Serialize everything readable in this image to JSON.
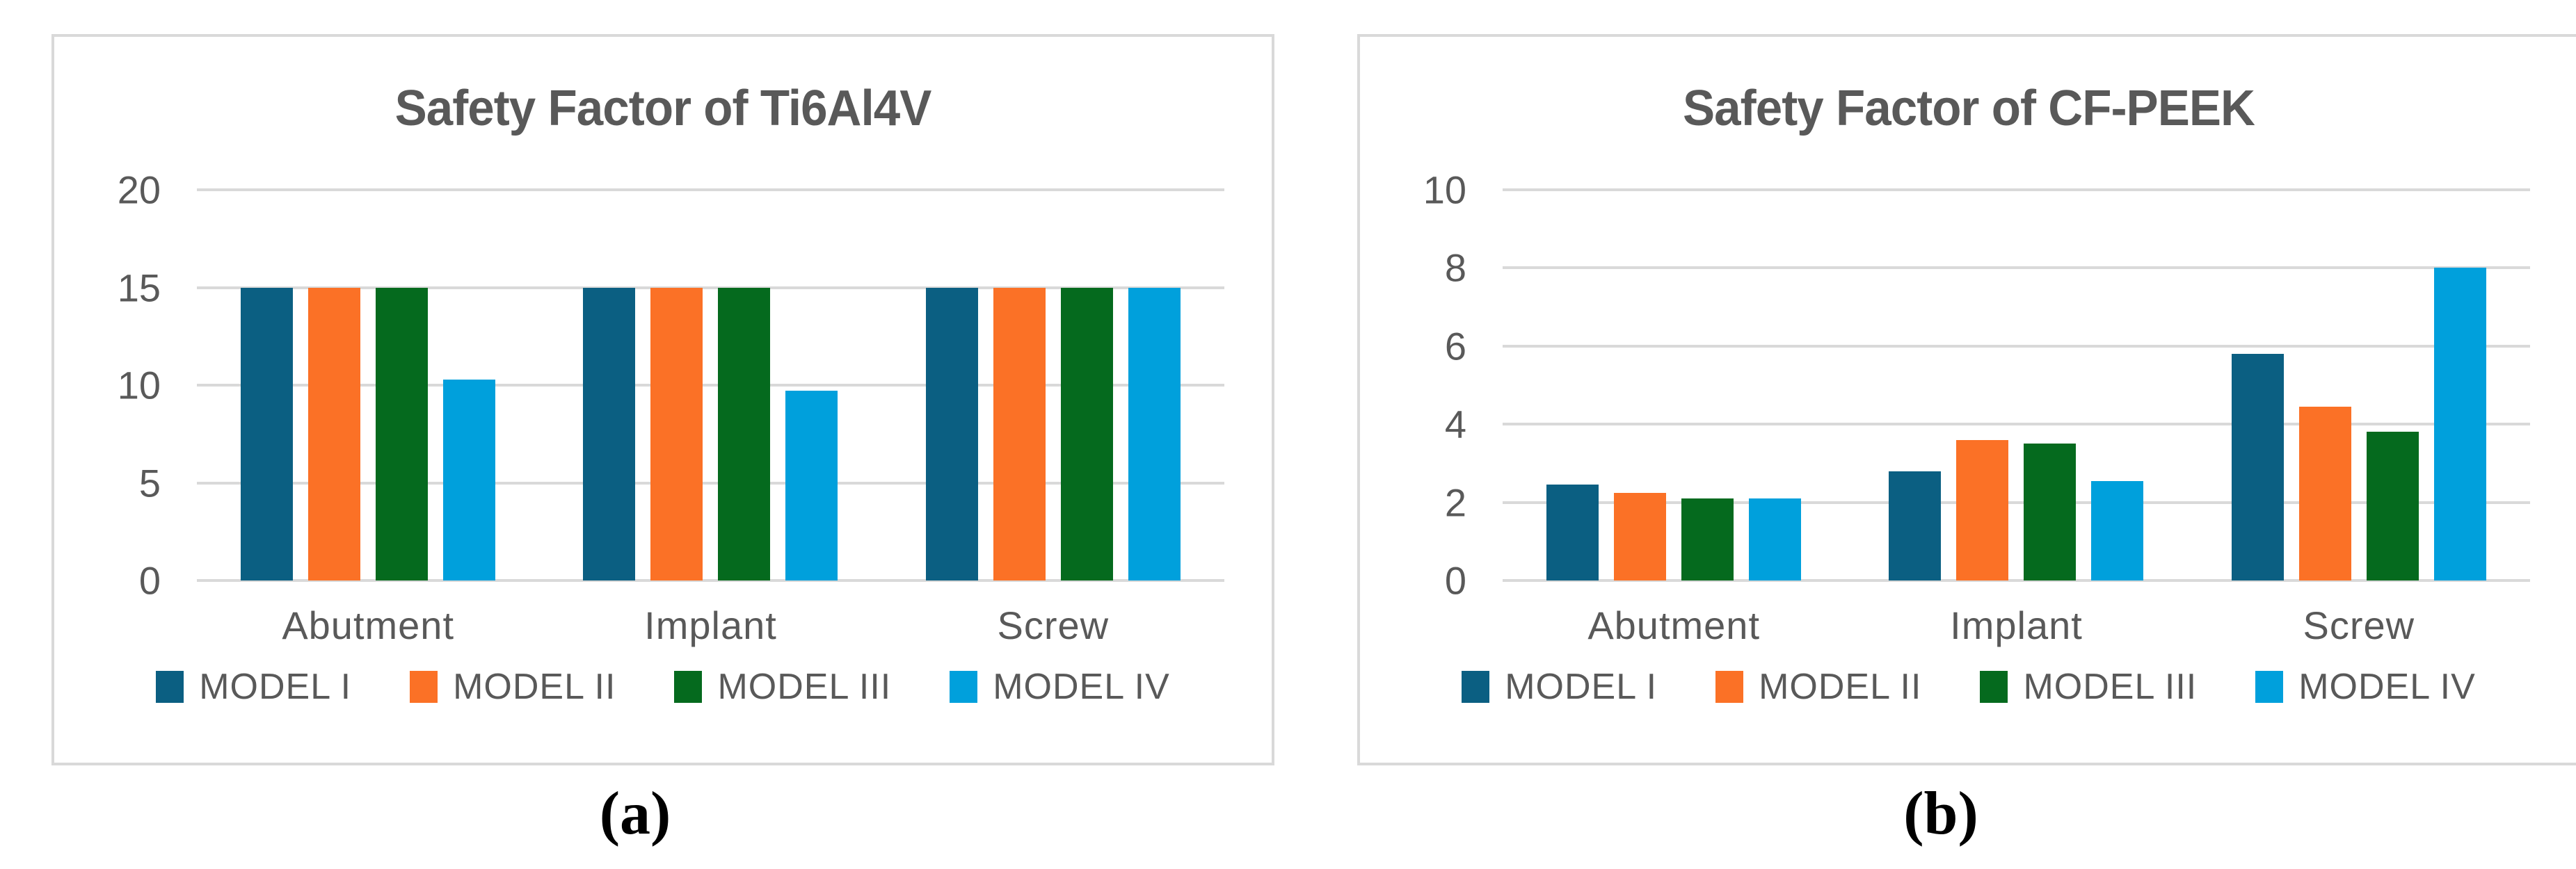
{
  "figure": {
    "panel_a_label": "(a)",
    "panel_b_label": "(b)"
  },
  "colors": {
    "model_1": "#0b5f82",
    "model_2": "#fb7126",
    "model_3": "#056a1e",
    "model_4": "#00a0dc",
    "gridline": "#d9d9d9",
    "panel_border": "#d9d9d9",
    "text": "#595959"
  },
  "chart_data": [
    {
      "type": "bar",
      "title": "Safety Factor of Ti6Al4V",
      "categories": [
        "Abutment",
        "Implant",
        "Screw"
      ],
      "series": [
        {
          "name": "MODEL I",
          "color": "#0b5f82",
          "values": [
            15,
            15,
            15
          ]
        },
        {
          "name": "MODEL II",
          "color": "#fb7126",
          "values": [
            15,
            15,
            15
          ]
        },
        {
          "name": "MODEL III",
          "color": "#056a1e",
          "values": [
            15,
            15,
            15
          ]
        },
        {
          "name": "MODEL IV",
          "color": "#00a0dc",
          "values": [
            10.3,
            9.7,
            15
          ]
        }
      ],
      "xlabel": "",
      "ylabel": "",
      "ylim": [
        0,
        20
      ],
      "yticks": [
        0,
        5,
        10,
        15,
        20
      ],
      "grid": true,
      "legend_position": "bottom"
    },
    {
      "type": "bar",
      "title": "Safety Factor of CF-PEEK",
      "categories": [
        "Abutment",
        "Implant",
        "Screw"
      ],
      "series": [
        {
          "name": "MODEL I",
          "color": "#0b5f82",
          "values": [
            2.45,
            2.8,
            5.8
          ]
        },
        {
          "name": "MODEL II",
          "color": "#fb7126",
          "values": [
            2.25,
            3.6,
            4.45
          ]
        },
        {
          "name": "MODEL III",
          "color": "#056a1e",
          "values": [
            2.1,
            3.5,
            3.8
          ]
        },
        {
          "name": "MODEL IV",
          "color": "#00a0dc",
          "values": [
            2.1,
            2.55,
            8.0
          ]
        }
      ],
      "xlabel": "",
      "ylabel": "",
      "ylim": [
        0,
        10
      ],
      "yticks": [
        0,
        2,
        4,
        6,
        8,
        10
      ],
      "grid": true,
      "legend_position": "bottom"
    }
  ]
}
